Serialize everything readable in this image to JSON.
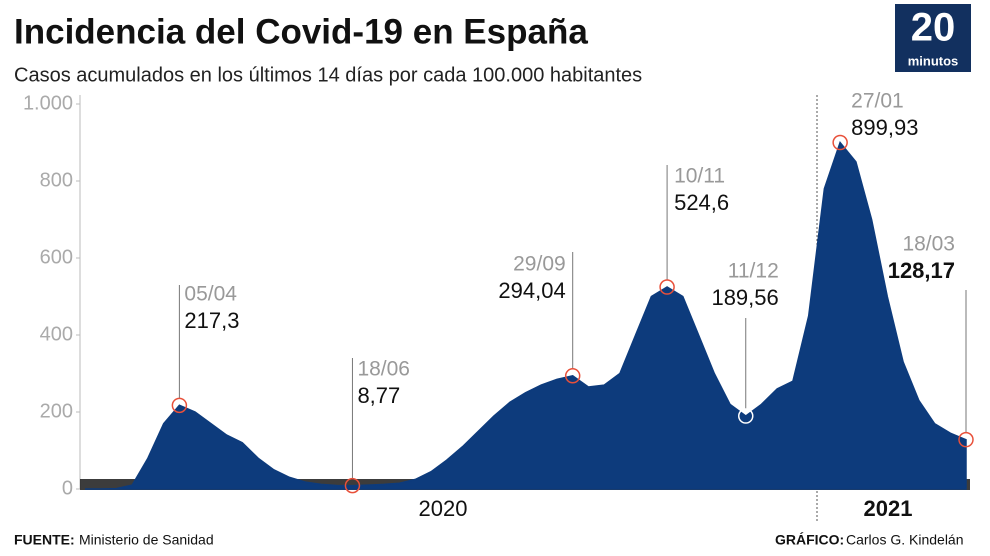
{
  "chart_data": {
    "type": "area",
    "title": "Incidencia del Covid-19 en España",
    "subtitle": "Casos acumulados en los últimos 14 días por cada 100.000 habitantes",
    "color": "#0d3b7c",
    "marker_color": "#e8503a",
    "categories": [
      null,
      null,
      null,
      null,
      null,
      null,
      "05/04",
      null,
      null,
      null,
      null,
      null,
      null,
      null,
      null,
      null,
      null,
      "18/06",
      null,
      null,
      null,
      null,
      null,
      null,
      null,
      null,
      null,
      null,
      null,
      null,
      null,
      "29/09",
      null,
      null,
      null,
      null,
      null,
      "10/11",
      null,
      null,
      null,
      null,
      "11/12",
      null,
      null,
      null,
      null,
      null,
      "27/01",
      null,
      null,
      null,
      null,
      null,
      null,
      null,
      "18/03"
    ],
    "values": [
      0,
      0,
      1,
      10,
      80,
      170,
      217.3,
      200,
      170,
      140,
      120,
      80,
      50,
      30,
      18,
      12,
      9,
      8.77,
      10,
      12,
      15,
      25,
      45,
      75,
      110,
      150,
      190,
      225,
      250,
      270,
      285,
      294.04,
      265,
      270,
      300,
      400,
      500,
      524.6,
      500,
      400,
      300,
      220,
      189.56,
      220,
      260,
      280,
      450,
      780,
      899.93,
      850,
      700,
      500,
      330,
      230,
      170,
      145,
      128.17
    ],
    "value_labels": [
      null,
      null,
      null,
      null,
      null,
      null,
      "217,3",
      null,
      null,
      null,
      null,
      null,
      null,
      null,
      null,
      null,
      null,
      "8,77",
      null,
      null,
      null,
      null,
      null,
      null,
      null,
      null,
      null,
      null,
      null,
      null,
      null,
      "294,04",
      null,
      null,
      null,
      null,
      null,
      "524,6",
      null,
      null,
      null,
      null,
      "189,56",
      null,
      null,
      null,
      null,
      null,
      "899,93",
      null,
      null,
      null,
      null,
      null,
      null,
      null,
      "128,17"
    ],
    "ylim": [
      0,
      1000
    ],
    "yticks": [
      0,
      200,
      400,
      600,
      800,
      {
        "value": 1000,
        "label": "1.000"
      }
    ],
    "year_labels": [
      "2020",
      "2021"
    ],
    "source_label": "FUENTE:",
    "source": "Ministerio de Sanidad",
    "credit_label": "GRÁFICO:",
    "credit": "Carlos G. Kindelán"
  },
  "logo": {
    "number": "20",
    "text": "minutos"
  }
}
